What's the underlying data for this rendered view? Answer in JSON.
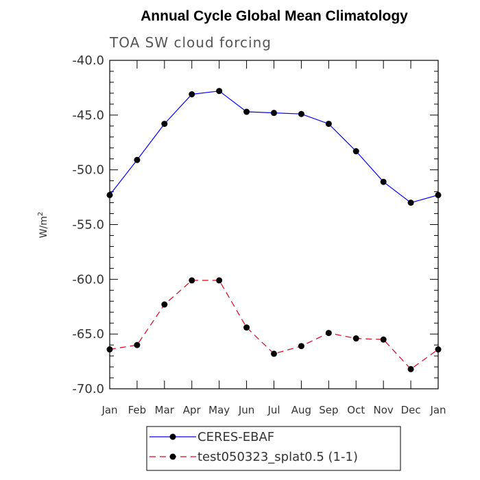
{
  "chart_data": {
    "type": "line",
    "title": "Annual Cycle Global Mean Climatology",
    "subtitle": "TOA SW cloud forcing",
    "ylabel": "W/m",
    "ylabel_sup": "2",
    "xlabel": "",
    "categories": [
      "Jan",
      "Feb",
      "Mar",
      "Apr",
      "May",
      "Jun",
      "Jul",
      "Aug",
      "Sep",
      "Oct",
      "Nov",
      "Dec",
      "Jan"
    ],
    "ylim": [
      -70.0,
      -40.0
    ],
    "yticks": [
      "-70.0",
      "-65.0",
      "-60.0",
      "-55.0",
      "-50.0",
      "-45.0",
      "-40.0"
    ],
    "yticks_values": [
      -70,
      -65,
      -60,
      -55,
      -50,
      -45,
      -40
    ],
    "legend_position": "bottom-center",
    "series": [
      {
        "name": "CERES-EBAF",
        "color": "#0000ff",
        "dash": "solid",
        "values": [
          -52.3,
          -49.1,
          -45.8,
          -43.1,
          -42.8,
          -44.7,
          -44.8,
          -44.9,
          -45.8,
          -48.3,
          -51.1,
          -53.0,
          -52.3
        ]
      },
      {
        "name": "test050323_splat0.5 (1-1)",
        "color": "#e0001a",
        "dash": "dashed",
        "values": [
          -66.4,
          -66.0,
          -62.3,
          -60.1,
          -60.1,
          -64.4,
          -66.8,
          -66.1,
          -64.9,
          -65.4,
          -65.5,
          -68.2,
          -66.4
        ]
      }
    ]
  }
}
